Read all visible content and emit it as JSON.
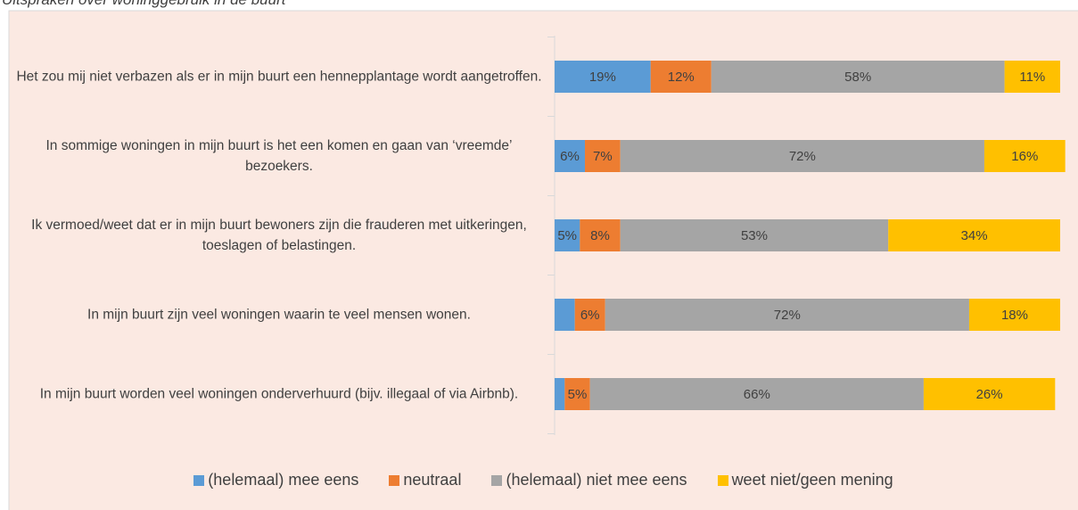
{
  "chart_data": {
    "type": "stacked_bar_horizontal",
    "title": "Uitspraken over woninggebruik in de buurt",
    "categories": [
      "Het zou mij niet verbazen als er in mijn buurt een hennepplantage wordt aangetroffen.",
      "In sommige woningen in mijn buurt is het een komen en gaan van ‘vreemde’ bezoekers.",
      "Ik vermoed/weet dat er in mijn buurt bewoners zijn die frauderen met uitkeringen, toeslagen of belastingen.",
      "In mijn buurt zijn veel woningen waarin te veel mensen wonen.",
      "In mijn buurt worden veel woningen onderverhuurd (bijv. illegaal of via Airbnb)."
    ],
    "series": [
      {
        "name": "(helemaal) mee eens",
        "color": "#5b9bd5",
        "values": [
          19,
          6,
          5,
          4,
          2
        ],
        "value_labels": [
          "19%",
          "6%",
          "5%",
          null,
          null
        ]
      },
      {
        "name": "neutraal",
        "color": "#ed7d31",
        "values": [
          12,
          7,
          8,
          6,
          5
        ],
        "value_labels": [
          "12%",
          "7%",
          "8%",
          "6%",
          "5%"
        ]
      },
      {
        "name": "(helemaal) niet mee eens",
        "color": "#a5a5a5",
        "values": [
          58,
          72,
          53,
          72,
          66
        ],
        "value_labels": [
          "58%",
          "72%",
          "53%",
          "72%",
          "66%"
        ]
      },
      {
        "name": "weet niet/geen mening",
        "color": "#ffc000",
        "values": [
          11,
          16,
          34,
          18,
          26
        ],
        "value_labels": [
          "11%",
          "16%",
          "34%",
          "18%",
          "26%"
        ]
      }
    ],
    "xlim": [
      0,
      100
    ],
    "legend": "bottom"
  }
}
